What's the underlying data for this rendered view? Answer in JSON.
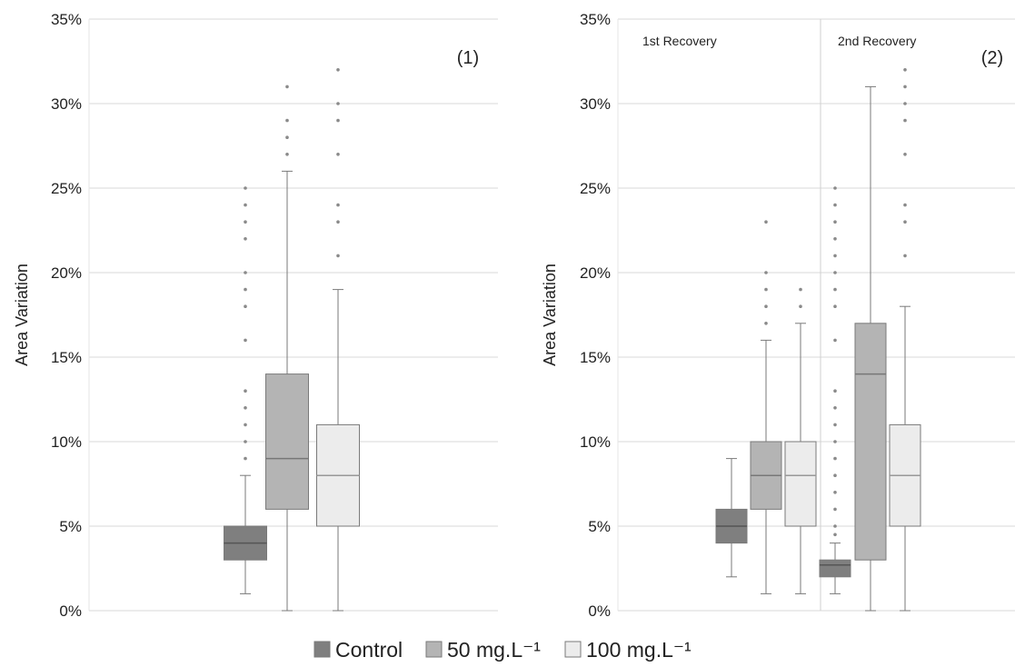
{
  "colors": {
    "control": "#7f7f7f",
    "c50": "#b4b4b4",
    "c100": "#ececec",
    "box_stroke": "#7a7a7a",
    "whisker": "#7a7a7a",
    "outlier": "#8a8a8a",
    "grid": "#d9d9d9",
    "median_control": "#555555",
    "median_50": "#777777",
    "median_100": "#999999"
  },
  "legend": {
    "items": [
      {
        "key": "control",
        "label": "Control"
      },
      {
        "key": "c50",
        "label": "50 mg.L⁻¹"
      },
      {
        "key": "c100",
        "label": "100 mg.L⁻¹"
      }
    ]
  },
  "chart_data": [
    {
      "type": "box",
      "panel_label": "(1)",
      "ylabel": "Area Variation",
      "ylim": [
        0,
        35
      ],
      "yticks": [
        "0%",
        "5%",
        "10%",
        "15%",
        "20%",
        "25%",
        "30%",
        "35%"
      ],
      "grid": true,
      "sections": [],
      "series": [
        {
          "name": "Control",
          "color_key": "control",
          "min": 1,
          "q1": 3,
          "median": 4,
          "q3": 5,
          "max": 8,
          "outliers": [
            9,
            10,
            11,
            12,
            13,
            16,
            18,
            19,
            20,
            22,
            23,
            24,
            25
          ]
        },
        {
          "name": "50 mg.L⁻¹",
          "color_key": "c50",
          "min": 0,
          "q1": 6,
          "median": 9,
          "q3": 14,
          "max": 26,
          "outliers": [
            27,
            28,
            29,
            31
          ]
        },
        {
          "name": "100 mg.L⁻¹",
          "color_key": "c100",
          "min": 0,
          "q1": 5,
          "median": 8,
          "q3": 11,
          "max": 19,
          "outliers": [
            21,
            23,
            24,
            27,
            29,
            30,
            32
          ]
        }
      ]
    },
    {
      "type": "box",
      "panel_label": "(2)",
      "ylabel": "Area Variation",
      "ylim": [
        0,
        35
      ],
      "yticks": [
        "0%",
        "5%",
        "10%",
        "15%",
        "20%",
        "25%",
        "30%",
        "35%"
      ],
      "grid": true,
      "sections": [
        {
          "label": "1st Recovery",
          "series": [
            {
              "name": "Control",
              "color_key": "control",
              "min": 2,
              "q1": 4,
              "median": 5,
              "q3": 6,
              "max": 9,
              "outliers": []
            },
            {
              "name": "50 mg.L⁻¹",
              "color_key": "c50",
              "min": 1,
              "q1": 6,
              "median": 8,
              "q3": 10,
              "max": 16,
              "outliers": [
                17,
                18,
                19,
                20,
                23
              ]
            },
            {
              "name": "100 mg.L⁻¹",
              "color_key": "c100",
              "min": 1,
              "q1": 5,
              "median": 8,
              "q3": 10,
              "max": 17,
              "outliers": [
                18,
                19
              ]
            }
          ]
        },
        {
          "label": "2nd Recovery",
          "series": [
            {
              "name": "Control",
              "color_key": "control",
              "min": 1,
              "q1": 2,
              "median": 2.7,
              "q3": 3,
              "max": 4,
              "outliers": [
                4.5,
                5,
                6,
                7,
                8,
                9,
                10,
                11,
                12,
                13,
                16,
                18,
                19,
                20,
                21,
                22,
                23,
                24,
                25
              ]
            },
            {
              "name": "50 mg.L⁻¹",
              "color_key": "c50",
              "min": 0,
              "q1": 3,
              "median": 14,
              "q3": 17,
              "max": 31,
              "outliers": []
            },
            {
              "name": "100 mg.L⁻¹",
              "color_key": "c100",
              "min": 0,
              "q1": 5,
              "median": 8,
              "q3": 11,
              "max": 18,
              "outliers": [
                21,
                23,
                24,
                27,
                29,
                30,
                31,
                32
              ]
            }
          ]
        }
      ]
    }
  ]
}
